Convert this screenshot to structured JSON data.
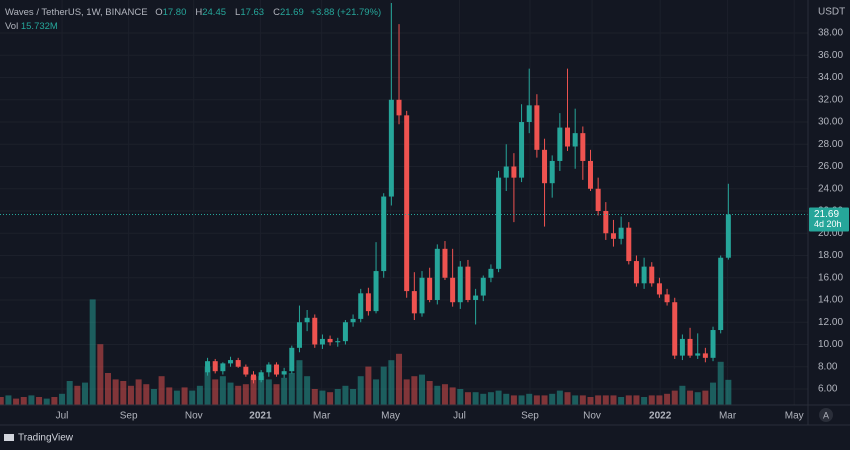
{
  "header": {
    "symbol": "Waves / TetherUS, 1W, BINANCE",
    "ohlc": [
      {
        "key": "O",
        "value": "17.80"
      },
      {
        "key": "H",
        "value": "24.45"
      },
      {
        "key": "L",
        "value": "17.63"
      },
      {
        "key": "C",
        "value": "21.69"
      }
    ],
    "change": "+3.88 (+21.79%)",
    "volume_key": "Vol",
    "volume_value": "15.732M"
  },
  "branding": "TradingView",
  "auto_button": "A",
  "chart_data": {
    "type": "candlestick",
    "currency": "USDT",
    "up_color": "#26a69a",
    "down_color": "#ef5350",
    "grid": true,
    "xlim": [
      -8.1,
      97.4
    ],
    "xticks": [
      {
        "value": 0,
        "label": "Jul"
      },
      {
        "value": 8.7,
        "label": "Sep"
      },
      {
        "value": 17.2,
        "label": "Nov"
      },
      {
        "value": 25.9,
        "label": "2021"
      },
      {
        "value": 33.9,
        "label": "Mar"
      },
      {
        "value": 42.9,
        "label": "May"
      },
      {
        "value": 51.9,
        "label": "Jul"
      },
      {
        "value": 61.1,
        "label": "Sep"
      },
      {
        "value": 69.2,
        "label": "Nov"
      },
      {
        "value": 78.1,
        "label": "2022"
      },
      {
        "value": 86.9,
        "label": "Mar"
      },
      {
        "value": 95.6,
        "label": "May"
      }
    ],
    "ylim": [
      4.56,
      40.97
    ],
    "yticks": [
      {
        "value": 6,
        "label": "6.00"
      },
      {
        "value": 8,
        "label": "8.00"
      },
      {
        "value": 10,
        "label": "10.00"
      },
      {
        "value": 12,
        "label": "12.00"
      },
      {
        "value": 14,
        "label": "14.00"
      },
      {
        "value": 16,
        "label": "16.00"
      },
      {
        "value": 18,
        "label": "18.00"
      },
      {
        "value": 20,
        "label": "20.00"
      },
      {
        "value": 22,
        "label": "22.00"
      },
      {
        "value": 24,
        "label": "24.00"
      },
      {
        "value": 26,
        "label": "26.00"
      },
      {
        "value": 28,
        "label": "28.00"
      },
      {
        "value": 30,
        "label": "30.00"
      },
      {
        "value": 32,
        "label": "32.00"
      },
      {
        "value": 34,
        "label": "34.00"
      },
      {
        "value": 36,
        "label": "36.00"
      },
      {
        "value": 38,
        "label": "38.00"
      }
    ],
    "x": [
      19,
      20,
      21,
      22,
      23,
      24,
      25,
      26,
      27,
      28,
      29,
      30,
      31,
      32,
      33,
      34,
      35,
      36,
      37,
      38,
      39,
      40,
      41,
      42,
      43,
      44,
      45,
      46,
      47,
      48,
      49,
      50,
      51,
      52,
      53,
      54,
      55,
      56,
      57,
      58,
      59,
      60,
      61,
      62,
      63,
      64,
      65,
      66,
      67,
      68,
      69,
      70,
      71,
      72,
      73,
      74,
      75,
      76,
      77,
      78,
      79,
      80,
      81,
      82,
      83,
      84,
      85,
      86,
      87
    ],
    "candles": [
      [
        7.5,
        8.8,
        7.2,
        8.5
      ],
      [
        8.5,
        8.7,
        7.4,
        7.6
      ],
      [
        7.6,
        8.4,
        7.3,
        8.3
      ],
      [
        8.3,
        8.9,
        8.0,
        8.6
      ],
      [
        8.6,
        8.8,
        7.9,
        8.0
      ],
      [
        8.0,
        8.2,
        7.1,
        7.3
      ],
      [
        7.3,
        7.6,
        6.5,
        6.8
      ],
      [
        6.8,
        7.7,
        6.6,
        7.5
      ],
      [
        7.5,
        8.4,
        7.1,
        8.2
      ],
      [
        8.2,
        8.4,
        7.1,
        7.3
      ],
      [
        7.3,
        7.9,
        7.0,
        7.6
      ],
      [
        7.6,
        9.9,
        7.4,
        9.7
      ],
      [
        9.7,
        13.5,
        9.3,
        12.0
      ],
      [
        12.0,
        13.1,
        11.2,
        12.4
      ],
      [
        12.4,
        12.7,
        9.7,
        10.0
      ],
      [
        10.0,
        10.9,
        9.6,
        10.5
      ],
      [
        10.5,
        10.8,
        9.9,
        10.2
      ],
      [
        10.2,
        10.6,
        9.8,
        10.3
      ],
      [
        10.3,
        12.2,
        10.0,
        12.0
      ],
      [
        12.0,
        12.7,
        11.6,
        12.3
      ],
      [
        12.3,
        15.0,
        12.0,
        14.6
      ],
      [
        14.6,
        15.1,
        12.6,
        13.0
      ],
      [
        13.0,
        19.2,
        12.8,
        16.6
      ],
      [
        16.6,
        23.6,
        16.0,
        23.3
      ],
      [
        23.3,
        40.7,
        22.5,
        32.0
      ],
      [
        32.0,
        38.8,
        29.8,
        30.6
      ],
      [
        30.6,
        31.0,
        14.2,
        14.8
      ],
      [
        14.8,
        16.5,
        12.2,
        12.8
      ],
      [
        12.8,
        16.6,
        12.5,
        16.0
      ],
      [
        16.0,
        16.9,
        13.8,
        14.0
      ],
      [
        14.0,
        19.0,
        13.6,
        18.6
      ],
      [
        18.6,
        19.3,
        15.8,
        16.0
      ],
      [
        16.0,
        18.6,
        13.4,
        13.8
      ],
      [
        13.8,
        17.5,
        13.2,
        17.0
      ],
      [
        17.0,
        17.6,
        13.8,
        14.0
      ],
      [
        14.0,
        15.0,
        11.8,
        14.4
      ],
      [
        14.4,
        16.2,
        13.9,
        16.0
      ],
      [
        16.0,
        17.2,
        15.6,
        16.8
      ],
      [
        16.8,
        25.6,
        16.5,
        25.0
      ],
      [
        25.0,
        28.0,
        23.8,
        26.0
      ],
      [
        26.0,
        27.2,
        21.0,
        25.0
      ],
      [
        25.0,
        31.6,
        24.6,
        30.0
      ],
      [
        30.0,
        34.8,
        29.0,
        31.5
      ],
      [
        31.5,
        32.5,
        26.8,
        27.5
      ],
      [
        27.5,
        28.5,
        20.6,
        24.5
      ],
      [
        24.5,
        27.0,
        23.2,
        26.5
      ],
      [
        26.5,
        30.8,
        25.6,
        29.5
      ],
      [
        29.5,
        34.8,
        27.4,
        27.8
      ],
      [
        27.8,
        31.2,
        25.8,
        29.0
      ],
      [
        29.0,
        29.6,
        24.8,
        26.5
      ],
      [
        26.5,
        27.5,
        23.8,
        24.0
      ],
      [
        24.0,
        25.0,
        21.6,
        22.0
      ],
      [
        22.0,
        22.8,
        19.4,
        20.0
      ],
      [
        20.0,
        21.2,
        18.8,
        19.5
      ],
      [
        19.5,
        21.5,
        19.0,
        20.5
      ],
      [
        20.5,
        21.0,
        17.2,
        17.5
      ],
      [
        17.5,
        18.0,
        15.2,
        15.5
      ],
      [
        15.5,
        17.8,
        15.0,
        17.0
      ],
      [
        17.0,
        17.4,
        15.2,
        15.5
      ],
      [
        15.5,
        16.0,
        14.2,
        14.5
      ],
      [
        14.5,
        15.0,
        13.5,
        13.8
      ],
      [
        13.8,
        14.2,
        8.7,
        9.0
      ],
      [
        9.0,
        10.9,
        8.6,
        10.5
      ],
      [
        10.5,
        11.5,
        8.8,
        9.0
      ],
      [
        9.0,
        11.0,
        8.7,
        9.2
      ],
      [
        9.2,
        9.7,
        8.4,
        8.8
      ],
      [
        8.8,
        11.6,
        8.5,
        11.3
      ],
      [
        11.3,
        18.0,
        11.0,
        17.8
      ],
      [
        17.8,
        24.45,
        17.63,
        21.69
      ]
    ],
    "last_price_label": "21.69",
    "countdown_label": "4d 20h",
    "volume": {
      "ylim": [
        0,
        100
      ],
      "x": [
        -8,
        -7,
        -6,
        -5,
        -4,
        -3,
        -2,
        -1,
        0,
        1,
        2,
        3,
        4,
        5,
        6,
        7,
        8,
        9,
        10,
        11,
        12,
        13,
        14,
        15,
        16,
        17,
        18,
        19,
        20,
        21,
        22,
        23,
        24,
        25,
        26,
        27,
        28,
        29,
        30,
        31,
        32,
        33,
        34,
        35,
        36,
        37,
        38,
        39,
        40,
        41,
        42,
        43,
        44,
        45,
        46,
        47,
        48,
        49,
        50,
        51,
        52,
        53,
        54,
        55,
        56,
        57,
        58,
        59,
        60,
        61,
        62,
        63,
        64,
        65,
        66,
        67,
        68,
        69,
        70,
        71,
        72,
        73,
        74,
        75,
        76,
        77,
        78,
        79,
        80,
        81,
        82,
        83,
        84,
        85,
        86,
        87
      ],
      "values": [
        5,
        6,
        4,
        5,
        6,
        5,
        4,
        5,
        7,
        15,
        12,
        14,
        66,
        38,
        20,
        16,
        15,
        12,
        16,
        13,
        10,
        18,
        11,
        9,
        11,
        9,
        12,
        24,
        16,
        18,
        14,
        12,
        13,
        18,
        18,
        16,
        13,
        17,
        20,
        28,
        18,
        10,
        9,
        8,
        10,
        12,
        10,
        18,
        24,
        16,
        24,
        28,
        32,
        16,
        18,
        19,
        15,
        12,
        13,
        11,
        10,
        8,
        8,
        7,
        8,
        9,
        7,
        6,
        6,
        7,
        6,
        6,
        7,
        9,
        8,
        6,
        6,
        5,
        6,
        6,
        6,
        5,
        6,
        6,
        5,
        6,
        6,
        7,
        9,
        12,
        9,
        8,
        9,
        14,
        27,
        15.732
      ],
      "colors": [
        "#ef5350",
        "#26a69a",
        "#ef5350",
        "#ef5350",
        "#26a69a",
        "#ef5350",
        "#26a69a",
        "#ef5350",
        "#26a69a",
        "#26a69a",
        "#ef5350",
        "#26a69a",
        "#26a69a",
        "#ef5350",
        "#ef5350",
        "#ef5350",
        "#ef5350",
        "#ef5350",
        "#ef5350",
        "#ef5350",
        "#26a69a",
        "#ef5350",
        "#ef5350",
        "#26a69a",
        "#ef5350",
        "#26a69a",
        "#26a69a",
        "#26a69a",
        "#ef5350",
        "#26a69a",
        "#26a69a",
        "#ef5350",
        "#ef5350",
        "#ef5350",
        "#26a69a",
        "#26a69a",
        "#ef5350",
        "#26a69a",
        "#26a69a",
        "#26a69a",
        "#26a69a",
        "#ef5350",
        "#26a69a",
        "#ef5350",
        "#26a69a",
        "#26a69a",
        "#26a69a",
        "#26a69a",
        "#ef5350",
        "#26a69a",
        "#26a69a",
        "#26a69a",
        "#ef5350",
        "#ef5350",
        "#ef5350",
        "#26a69a",
        "#ef5350",
        "#26a69a",
        "#ef5350",
        "#ef5350",
        "#26a69a",
        "#ef5350",
        "#26a69a",
        "#26a69a",
        "#26a69a",
        "#26a69a",
        "#26a69a",
        "#ef5350",
        "#26a69a",
        "#26a69a",
        "#ef5350",
        "#ef5350",
        "#26a69a",
        "#26a69a",
        "#ef5350",
        "#26a69a",
        "#ef5350",
        "#ef5350",
        "#ef5350",
        "#ef5350",
        "#ef5350",
        "#26a69a",
        "#ef5350",
        "#ef5350",
        "#26a69a",
        "#ef5350",
        "#ef5350",
        "#ef5350",
        "#ef5350",
        "#26a69a",
        "#ef5350",
        "#26a69a",
        "#ef5350",
        "#26a69a",
        "#26a69a",
        "#26a69a"
      ]
    }
  }
}
